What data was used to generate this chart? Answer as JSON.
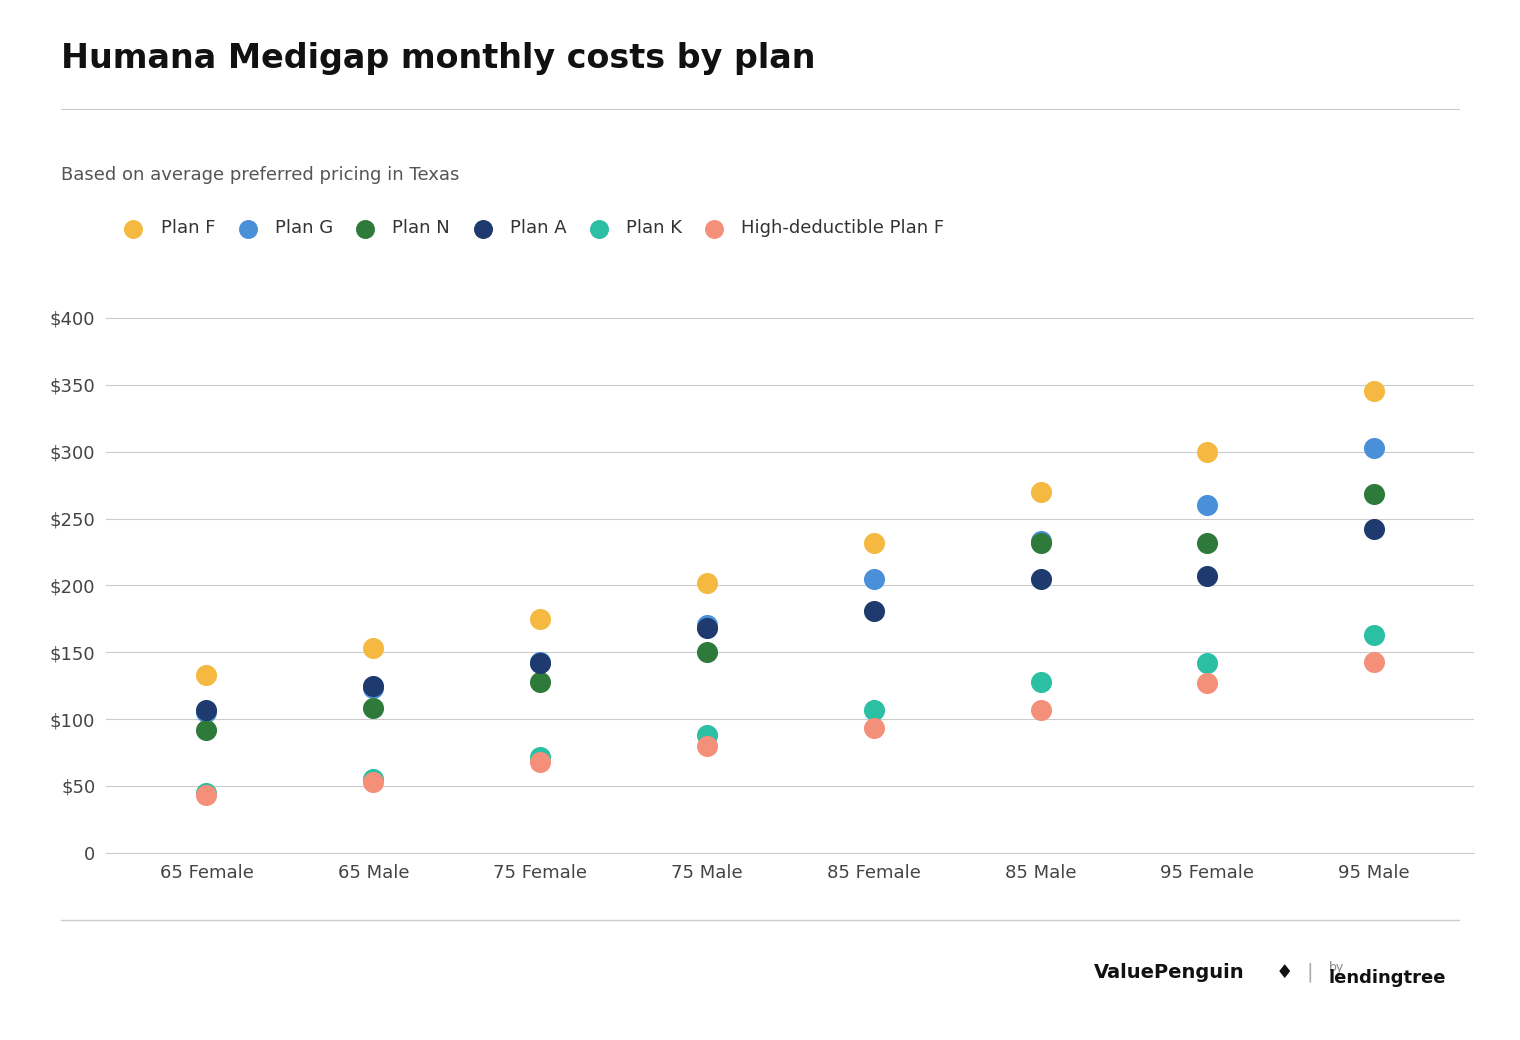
{
  "title": "Humana Medigap monthly costs by plan",
  "subtitle": "Based on average preferred pricing in Texas",
  "categories": [
    "65 Female",
    "65 Male",
    "75 Female",
    "75 Male",
    "85 Female",
    "85 Male",
    "95 Female",
    "95 Male"
  ],
  "series": {
    "Plan F": {
      "color": "#F5B942",
      "values": [
        133,
        153,
        175,
        202,
        232,
        270,
        300,
        345
      ]
    },
    "Plan G": {
      "color": "#4A90D9",
      "values": [
        105,
        123,
        143,
        170,
        205,
        233,
        260,
        303
      ]
    },
    "Plan N": {
      "color": "#2D7A3A",
      "values": [
        92,
        108,
        128,
        150,
        null,
        232,
        232,
        268
      ]
    },
    "Plan A": {
      "color": "#1E3A6E",
      "values": [
        107,
        125,
        142,
        168,
        181,
        205,
        207,
        242
      ]
    },
    "Plan K": {
      "color": "#2BBFA4",
      "values": [
        45,
        55,
        72,
        88,
        107,
        128,
        142,
        163
      ]
    },
    "High-deductible Plan F": {
      "color": "#F4907A",
      "values": [
        43,
        53,
        68,
        80,
        93,
        107,
        127,
        143
      ]
    }
  },
  "ylim": [
    0,
    420
  ],
  "yticks": [
    0,
    50,
    100,
    150,
    200,
    250,
    300,
    350,
    400
  ],
  "ytick_labels": [
    "0",
    "$50",
    "$100",
    "$150",
    "$200",
    "$250",
    "$300",
    "$350",
    "$400"
  ],
  "background_color": "#ffffff",
  "grid_color": "#CCCCCC",
  "title_fontsize": 24,
  "subtitle_fontsize": 13,
  "axis_fontsize": 13,
  "legend_fontsize": 13,
  "marker_size": 200,
  "bottom_line_color": "#CCCCCC"
}
